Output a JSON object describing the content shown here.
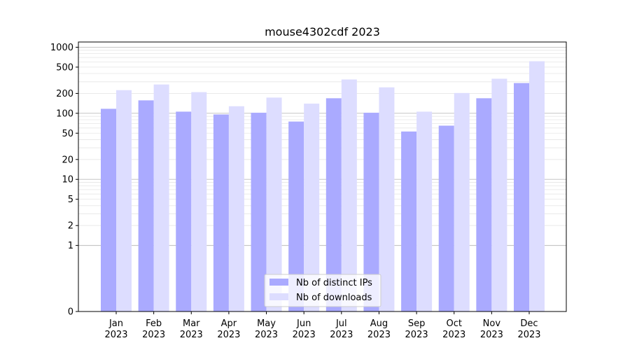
{
  "chart_data": {
    "type": "bar",
    "title": "mouse4302cdf 2023",
    "xlabel": "",
    "ylabel": "",
    "yscale": "symlog",
    "ylim": [
      0,
      1200
    ],
    "grid": "horizontal",
    "legend_position": "bottom-center",
    "categories": [
      "Jan",
      "Feb",
      "Mar",
      "Apr",
      "May",
      "Jun",
      "Jul",
      "Aug",
      "Sep",
      "Oct",
      "Nov",
      "Dec"
    ],
    "category_year": "2023",
    "yticks": [
      0,
      1,
      2,
      5,
      10,
      20,
      50,
      100,
      200,
      500,
      1000
    ],
    "ytick_labels": [
      "0",
      "1",
      "2",
      "5",
      "10",
      "20",
      "50",
      "100",
      "200",
      "500",
      "1000"
    ],
    "series": [
      {
        "name": "Nb of distinct IPs",
        "color": "#aaaaff",
        "values": [
          117,
          157,
          106,
          96,
          102,
          75,
          169,
          102,
          53,
          65,
          169,
          287
        ]
      },
      {
        "name": "Nb of downloads",
        "color": "#ddddff",
        "values": [
          224,
          273,
          209,
          128,
          173,
          140,
          325,
          247,
          106,
          203,
          334,
          614
        ]
      }
    ]
  }
}
